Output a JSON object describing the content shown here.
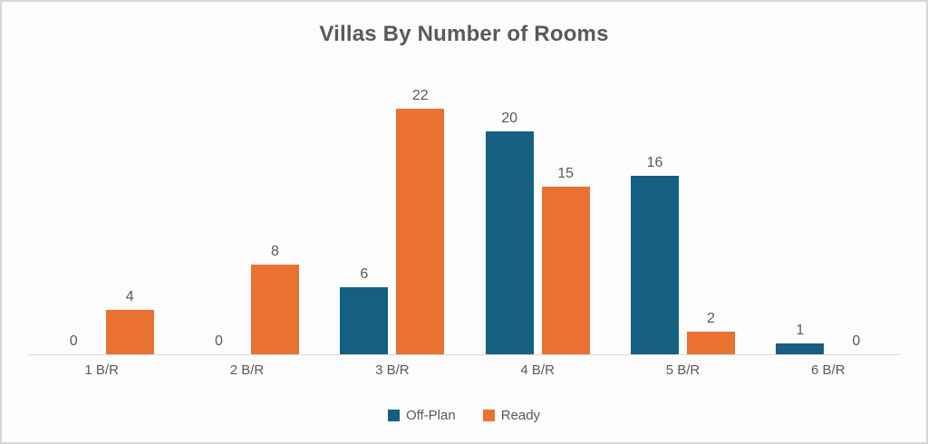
{
  "chart_data": {
    "type": "bar",
    "title": "Villas By Number of Rooms",
    "categories": [
      "1 B/R",
      "2 B/R",
      "3 B/R",
      "4 B/R",
      "5 B/R",
      "6 B/R"
    ],
    "series": [
      {
        "name": "Off-Plan",
        "color": "#156082",
        "values": [
          0,
          0,
          6,
          20,
          16,
          1
        ]
      },
      {
        "name": "Ready",
        "color": "#E97132",
        "values": [
          4,
          8,
          22,
          15,
          2,
          0
        ]
      }
    ],
    "data_labels": true,
    "ylim": [
      0,
      22
    ],
    "grid": false,
    "legend_position": "bottom",
    "xlabel": "",
    "ylabel": ""
  },
  "colors": {
    "text": "#595959",
    "axis_line": "#d9d9d9",
    "frame_border": "#d6d6d6",
    "background": "#fdfdfd"
  }
}
